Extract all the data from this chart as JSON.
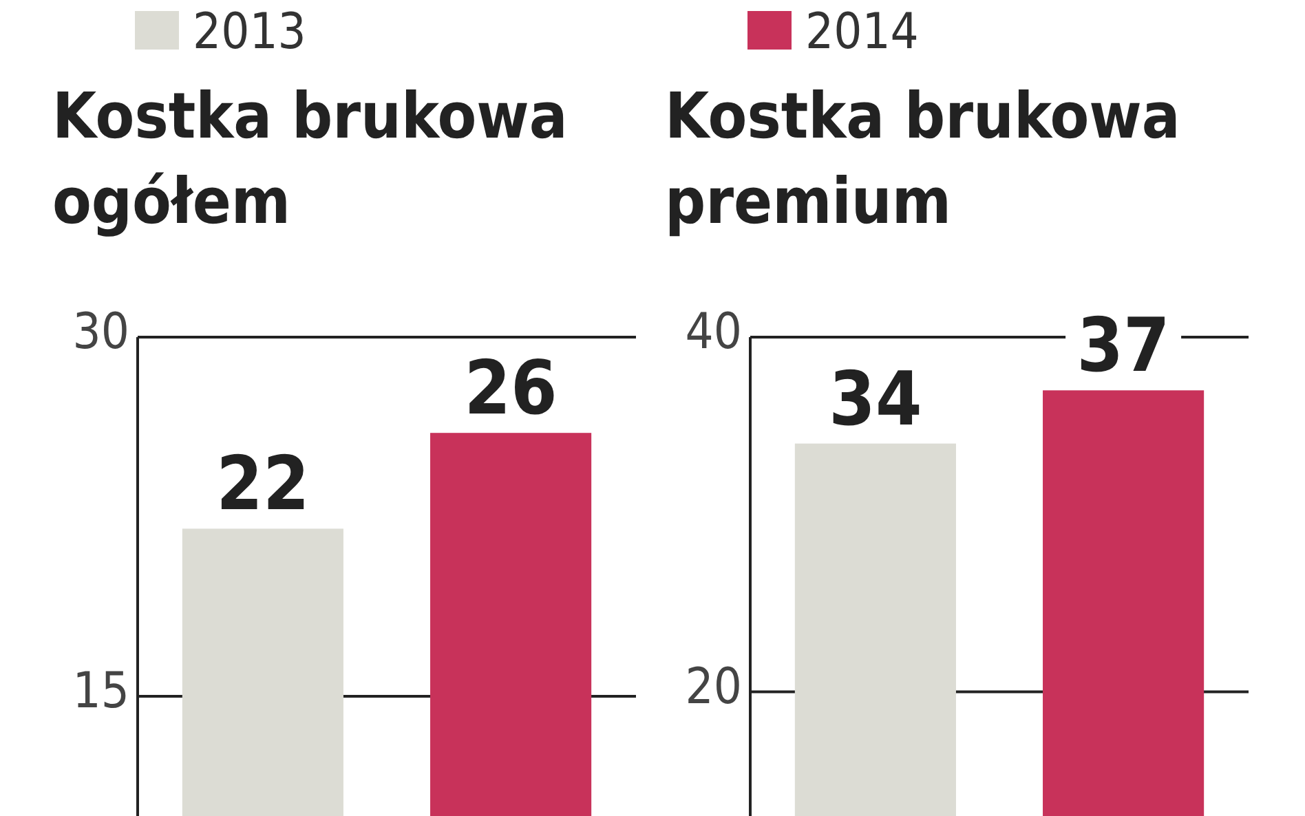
{
  "chart_data": [
    {
      "type": "bar",
      "title": "Kostka brukowa\nogółem",
      "categories": [
        null
      ],
      "series": [
        {
          "name": "2013",
          "color": "#dcdcd4",
          "values": [
            22
          ]
        },
        {
          "name": "2014",
          "color": "#c8325a",
          "values": [
            26
          ]
        }
      ],
      "ylim": [
        10,
        30
      ],
      "yticks": [
        15,
        30
      ],
      "grid": "y",
      "data_labels": true,
      "legend": "top"
    },
    {
      "type": "bar",
      "title": "Kostka brukowa\npremium",
      "categories": [
        null
      ],
      "series": [
        {
          "color": "#dcdcd4",
          "values": [
            34
          ]
        },
        {
          "color": "#c8325a",
          "values": [
            37
          ]
        }
      ],
      "ylim": [
        13,
        40
      ],
      "yticks": [
        20,
        40
      ],
      "grid": "y",
      "data_labels": true
    }
  ]
}
